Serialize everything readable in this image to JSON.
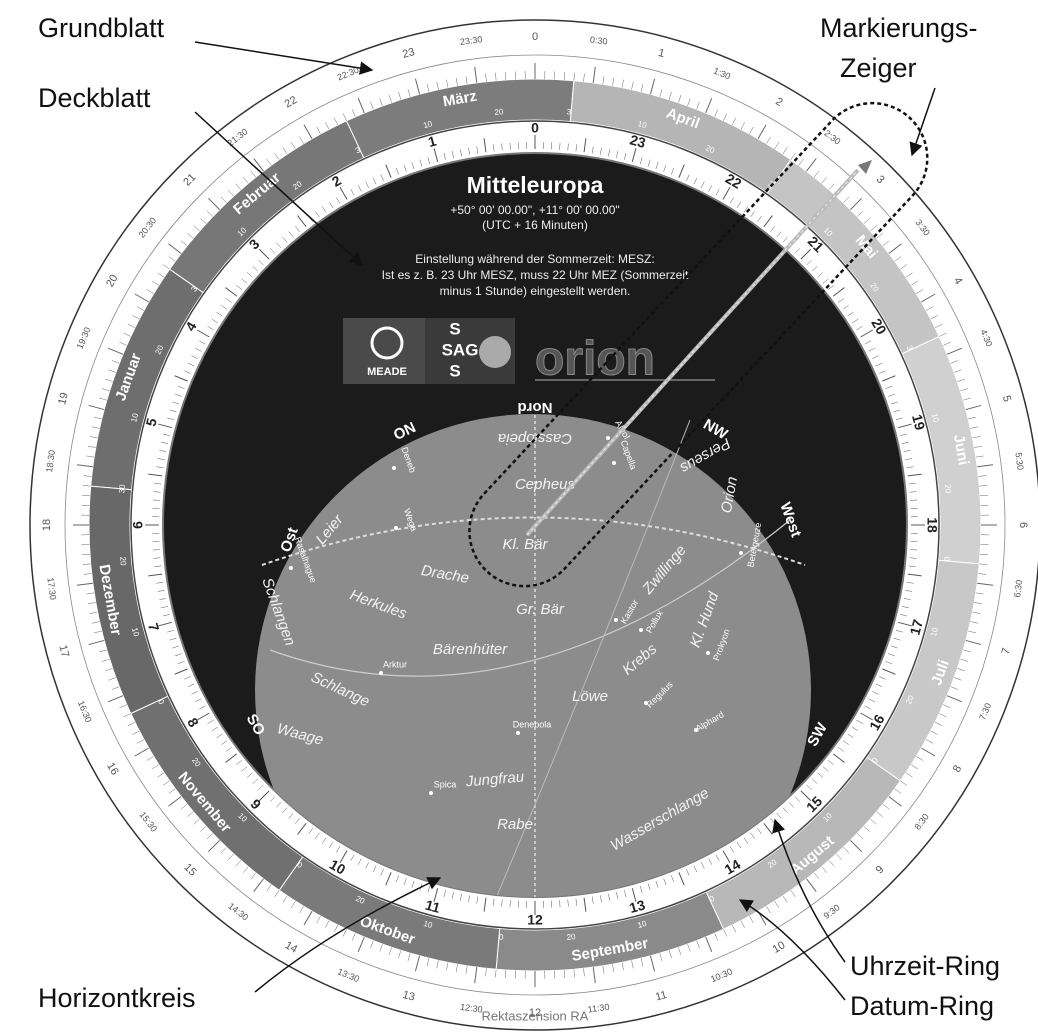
{
  "callouts": {
    "grundblatt": "Grundblatt",
    "deckblatt": "Deckblatt",
    "markierungs_zeiger": [
      "Markierungs-",
      "Zeiger"
    ],
    "horizontkreis": "Horizontkreis",
    "uhrzeit_ring": "Uhrzeit-Ring",
    "datum_ring": "Datum-Ring"
  },
  "dial": {
    "title": "Mitteleuropa",
    "coordinates": "+50° 00' 00.00\", +11° 00' 00.00\"",
    "timezone": "(UTC + 16 Minuten)",
    "note": [
      "Einstellung während der Sommerzeit: MESZ:",
      "Ist es z. B. 23 Uhr MESZ, muss 22 Uhr MEZ (Sommerzeit",
      "minus 1 Stunde) eingestellt werden."
    ]
  },
  "logos": {
    "meade": "MEADE",
    "sag": [
      "S",
      "SAG",
      "S"
    ],
    "orion": "orion"
  },
  "hour_ring": [
    "0",
    "1",
    "2",
    "3",
    "4",
    "5",
    "6",
    "7",
    "8",
    "9",
    "10",
    "11",
    "12",
    "13",
    "14",
    "15",
    "16",
    "17",
    "18",
    "19",
    "20",
    "21",
    "22",
    "23"
  ],
  "date_ring": {
    "months": [
      "Januar",
      "Februar",
      "März",
      "April",
      "Mai",
      "Juni",
      "Juli",
      "August",
      "September",
      "Oktober",
      "November",
      "Dezember"
    ],
    "days": [
      "10",
      "20",
      "30"
    ]
  },
  "time_scale": [
    "0",
    "0:30",
    "1",
    "1:30",
    "2",
    "2:30",
    "3",
    "3:30",
    "4",
    "4:30",
    "5",
    "5:30",
    "6",
    "6:30",
    "7",
    "7:30",
    "8",
    "8:30",
    "9",
    "9:30",
    "10",
    "10:30",
    "11",
    "11:30",
    "12",
    "12:30",
    "13",
    "13:30",
    "14",
    "14:30",
    "15",
    "15:30",
    "16",
    "16:30",
    "17",
    "17:30",
    "18",
    "18:30",
    "19",
    "19:30",
    "20",
    "20:30",
    "21",
    "21:30",
    "22",
    "22:30",
    "23",
    "23:30"
  ],
  "directions": [
    "Nord",
    "NW",
    "West",
    "SW",
    "SO",
    "Ost",
    "ON"
  ],
  "constellations": [
    "Cassiopeia",
    "Perseus",
    "Cepheus",
    "Kl. Bär",
    "Gr. Bär",
    "Drache",
    "Leier",
    "Herkules",
    "Schlangen",
    "Schlange",
    "Bärenhüter",
    "Waage",
    "Jungfrau",
    "Rabe",
    "Wasserschlange",
    "Löwe",
    "Krebs",
    "Zwillinge",
    "Kl. Hund",
    "Orion"
  ],
  "stars": [
    "Deneb",
    "Wega",
    "Rasalhague",
    "Arktur",
    "Spica",
    "Denebola",
    "Regulus",
    "Alphard",
    "Prokyon",
    "Kastor",
    "Pollux",
    "Capella",
    "Beteigeuze",
    "Algol"
  ],
  "footer": "Rektaszension RA"
}
